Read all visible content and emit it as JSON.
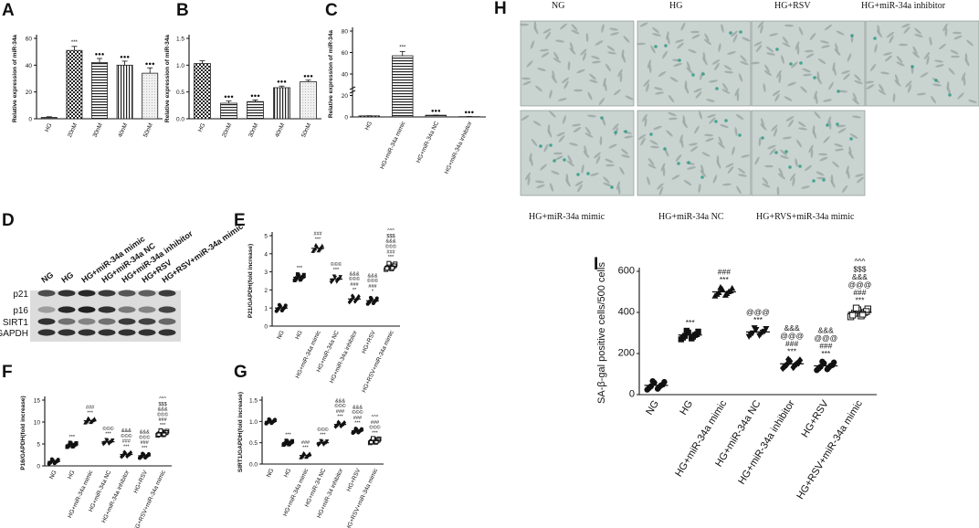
{
  "panel_letters": {
    "A": "A",
    "B": "B",
    "C": "C",
    "D": "D",
    "E": "E",
    "F": "F",
    "G": "G",
    "H": "H",
    "I": "I"
  },
  "colors": {
    "axis": "#111111",
    "bar_fill": "#f4f4f4",
    "dark": "#222222",
    "photo_bg": "#c9d3d0",
    "green": "#2f9c86"
  },
  "panel_h": {
    "labels": [
      "NG",
      "HG",
      "HG+RSV",
      "HG+miR-34a inhibitor",
      "HG+miR-34a mimic",
      "HG+miR-34a NC",
      "HG+RVS+miR-34a mimic"
    ]
  },
  "panel_d": {
    "lanes": [
      "NG",
      "HG",
      "HG+miR-34a mimic",
      "HG+miR-34a NC",
      "HG+miR-34a inhibitor",
      "HG+RSV",
      "HG+RSV+miR-34a mimic"
    ],
    "rows": [
      "p21",
      "p16",
      "SIRT1",
      "GAPDH"
    ],
    "band_intensity": {
      "p21": [
        0.75,
        0.9,
        0.95,
        0.85,
        0.7,
        0.65,
        0.85
      ],
      "p16": [
        0.3,
        0.95,
        1.0,
        0.9,
        0.5,
        0.45,
        0.8
      ],
      "SIRT1": [
        0.9,
        0.55,
        0.45,
        0.55,
        0.85,
        0.8,
        0.6
      ],
      "GAPDH": [
        0.9,
        0.9,
        0.9,
        0.9,
        0.9,
        0.9,
        0.9
      ]
    }
  },
  "chart_data": [
    {
      "id": "A",
      "type": "bar",
      "categories": [
        "HG",
        "20nM",
        "30nM",
        "40nM",
        "50nM"
      ],
      "values": [
        1,
        51,
        42,
        40,
        34
      ],
      "errors": [
        0.5,
        3,
        3,
        3,
        4
      ],
      "significance": [
        "",
        "***",
        "●●●",
        "●●●",
        "●●●"
      ],
      "patterns": [
        "solid",
        "check",
        "hstripe",
        "vstripe",
        "light"
      ],
      "ylabel": "Relative expression of miR-34a",
      "ylim": [
        0,
        60
      ],
      "yticks": [
        0,
        20,
        40,
        60
      ]
    },
    {
      "id": "B",
      "type": "bar",
      "categories": [
        "HG",
        "20nM",
        "30nM",
        "40nM",
        "50nM"
      ],
      "values": [
        1.03,
        0.29,
        0.32,
        0.58,
        0.69
      ],
      "errors": [
        0.05,
        0.04,
        0.03,
        0.03,
        0.03
      ],
      "significance": [
        "",
        "●●●",
        "●●●",
        "●●●",
        "●●●"
      ],
      "patterns": [
        "check",
        "hstripe",
        "hstripe",
        "vstripe",
        "light"
      ],
      "ylabel": "Relative expression of miR-34a",
      "ylim": [
        0,
        1.5
      ],
      "yticks": [
        "0.0",
        "0.5",
        "1.0",
        "1.5"
      ]
    },
    {
      "id": "C",
      "type": "bar",
      "categories": [
        "HG",
        "HG+miR-34a mimic",
        "HG+miR-34a NC",
        "HG+miR-34a inhibitor"
      ],
      "values": [
        1,
        57,
        1.6,
        0.3
      ],
      "errors": [
        0.05,
        4,
        0.08,
        0.04
      ],
      "significance": [
        "",
        "***",
        "●●●",
        "●●●"
      ],
      "patterns": [
        "check",
        "hstripe",
        "hstripe",
        "light"
      ],
      "ylabel": "Relative expression of miR-34a",
      "ylim": [
        0,
        80
      ],
      "yticks": [
        0,
        20,
        40,
        60,
        80
      ],
      "ybreak": true
    },
    {
      "id": "E",
      "type": "scatter",
      "categories": [
        "NG",
        "HG",
        "HG+miR-34a mimic",
        "HG+miR-34a NC",
        "HG+miR-34a inhibitor",
        "HG+RSV",
        "HG+RSV+miR-34a mimic"
      ],
      "means": [
        1.0,
        2.7,
        4.3,
        2.6,
        1.5,
        1.4,
        3.3
      ],
      "markers": [
        "circle",
        "square",
        "triangle",
        "triangle-down",
        "diamond",
        "circle",
        "square-open"
      ],
      "significance": [
        "",
        "***",
        "###\n***",
        "©©©\n***",
        "&&&\n©©©\n###\n**",
        "&&&\n©©©\n###\n*",
        "^^^\n$$$\n&&&\n©©©\n###\n***"
      ],
      "ylabel": "P21/GAPDH(fold increase)",
      "ylim": [
        0,
        5
      ],
      "yticks": [
        0,
        1,
        2,
        3,
        4,
        5
      ]
    },
    {
      "id": "F",
      "type": "scatter",
      "categories": [
        "NG",
        "HG",
        "HG+miR-34a mimic",
        "HG+miR-34a NC",
        "HG+miR-34a inhibitor",
        "HG+RSV",
        "HG+RSV+miR-34a mimic"
      ],
      "means": [
        1.0,
        4.8,
        10.3,
        5.5,
        2.6,
        2.3,
        7.5
      ],
      "markers": [
        "circle",
        "square",
        "triangle",
        "triangle-down",
        "diamond",
        "circle",
        "square-open"
      ],
      "significance": [
        "",
        "***",
        "###\n***",
        "©©©\n***",
        "&&&\n©©©\n###\n***",
        "&&&\n©©©\n###\n***",
        "^^^\n$$$\n&&&\n©©©\n###\n***"
      ],
      "ylabel": "P16/GAPDH(fold increase)",
      "ylim": [
        0,
        15
      ],
      "yticks": [
        0,
        5,
        10,
        15
      ]
    },
    {
      "id": "G",
      "type": "scatter",
      "categories": [
        "NG",
        "HG",
        "HG+miR-34a mimic",
        "HG+miR-34 NC",
        "HG+miR-34 inhibitor",
        "HG+RSV",
        "HG+RSV+miR-34a mimic"
      ],
      "means": [
        1.0,
        0.5,
        0.2,
        0.5,
        0.93,
        0.78,
        0.55
      ],
      "markers": [
        "circle",
        "square",
        "triangle",
        "triangle-down",
        "diamond",
        "circle",
        "square-open"
      ],
      "significance": [
        "",
        "***",
        "###\n***",
        "©©©\n***",
        "&&&\n©©©\n###\n***",
        "&&&\n©©©\n###\n***",
        "^^^\n###\n©©©\n***"
      ],
      "ylabel": "SIRT1/GAPDH(fold increase)",
      "ylim": [
        0,
        1.5
      ],
      "yticks": [
        "0.0",
        "0.5",
        "1.0",
        "1.5"
      ]
    },
    {
      "id": "I",
      "type": "scatter",
      "categories": [
        "NG",
        "HG",
        "HG+miR-34a mimic",
        "HG+miR-34a NC",
        "HG+miR-34a inhibitor",
        "HG+RSV",
        "HG+RSV+miR-34a mimic"
      ],
      "means": [
        45,
        290,
        500,
        305,
        150,
        140,
        400
      ],
      "markers": [
        "circle",
        "square",
        "triangle",
        "triangle-down",
        "diamond",
        "circle",
        "square-open"
      ],
      "significance": [
        "",
        "***",
        "###\n***",
        "@@@\n***",
        "&&&\n@@@\n###\n***",
        "&&&\n@@@\n###\n***",
        "^^^\n$$$\n&&&\n@@@\n###\n***"
      ],
      "ylabel": "SA-β-gal positive cells/500 cells",
      "ylim": [
        0,
        600
      ],
      "yticks": [
        0,
        200,
        400,
        600
      ]
    }
  ]
}
